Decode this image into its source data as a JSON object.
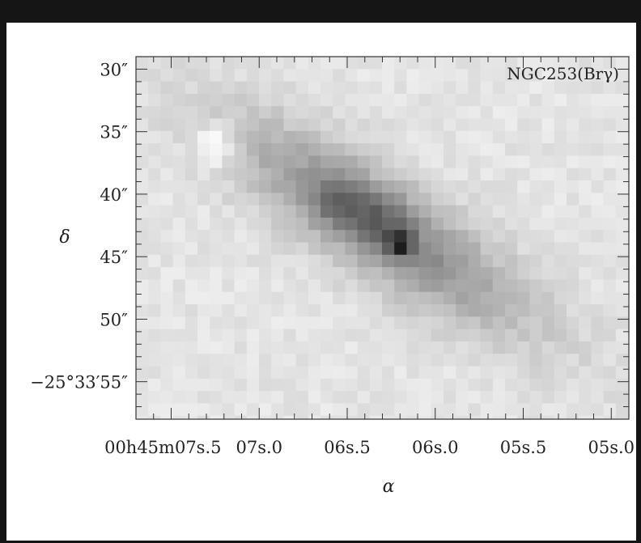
{
  "chart_data": {
    "type": "heatmap",
    "title": "NGC253(Brγ)",
    "xlabel": "α",
    "ylabel": "δ",
    "colormap": "grayscale (darker = brighter Brγ emission)",
    "x_ticks": [
      {
        "value": 7.5,
        "label": "00h45m07s.5"
      },
      {
        "value": 7.0,
        "label": "07s.0"
      },
      {
        "value": 6.5,
        "label": "06s.5"
      },
      {
        "value": 6.0,
        "label": "06s.0"
      },
      {
        "value": 5.5,
        "label": "05s.5"
      },
      {
        "value": 5.0,
        "label": "05s.0"
      }
    ],
    "y_ticks": [
      {
        "value": 30,
        "label": "30″"
      },
      {
        "value": 35,
        "label": "35″"
      },
      {
        "value": 40,
        "label": "40″"
      },
      {
        "value": 45,
        "label": "45″"
      },
      {
        "value": 50,
        "label": "50″"
      },
      {
        "value": 55,
        "label": "−25°33′55″"
      }
    ],
    "xlim": [
      7.7,
      4.9
    ],
    "ylim": [
      58,
      29
    ],
    "features": [
      {
        "ra_s": 7.25,
        "dec_arcsec": 36.0,
        "kind": "bright-white spot",
        "intensity": 0.0
      },
      {
        "ra_s": 6.55,
        "dec_arcsec": 40.5,
        "kind": "dark lobe",
        "intensity": 0.55
      },
      {
        "ra_s": 6.3,
        "dec_arcsec": 42.0,
        "kind": "dark lobe",
        "intensity": 0.6
      },
      {
        "ra_s": 6.2,
        "dec_arcsec": 44.0,
        "kind": "peak",
        "intensity": 1.0
      }
    ]
  }
}
